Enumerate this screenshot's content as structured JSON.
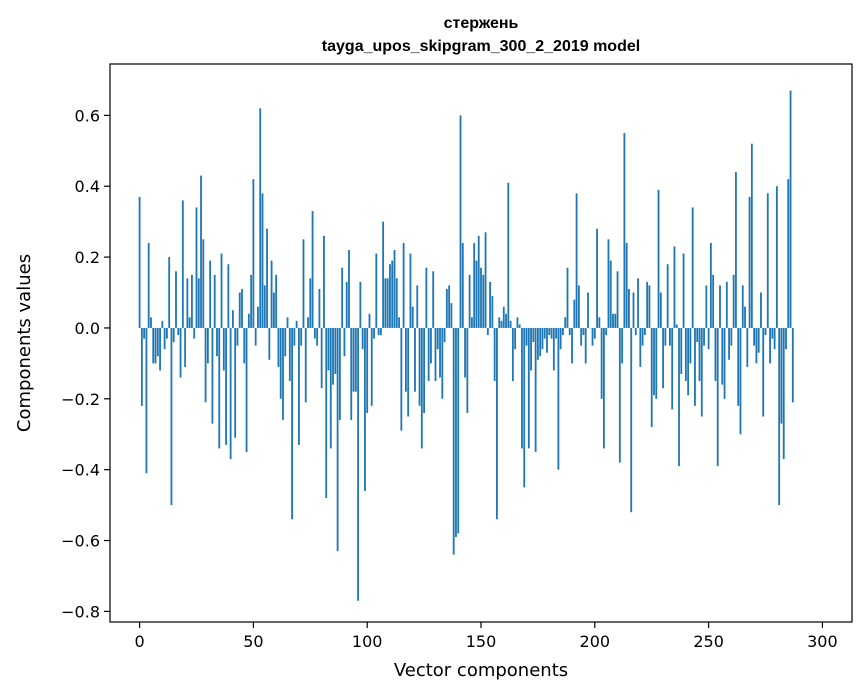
{
  "chart_data": {
    "type": "bar",
    "title_lines": [
      "стержень",
      "tayga_upos_skipgram_300_2_2019 model"
    ],
    "xlabel": "Vector components",
    "ylabel": "Components values",
    "xlim": [
      -13,
      313
    ],
    "ylim": [
      -0.83,
      0.745
    ],
    "xticks": [
      {
        "value": 0,
        "label": "0"
      },
      {
        "value": 50,
        "label": "50"
      },
      {
        "value": 100,
        "label": "100"
      },
      {
        "value": 150,
        "label": "150"
      },
      {
        "value": 200,
        "label": "200"
      },
      {
        "value": 250,
        "label": "250"
      },
      {
        "value": 300,
        "label": "300"
      }
    ],
    "yticks": [
      {
        "value": -0.8,
        "label": "−0.8"
      },
      {
        "value": -0.6,
        "label": "−0.6"
      },
      {
        "value": -0.4,
        "label": "−0.4"
      },
      {
        "value": -0.2,
        "label": "−0.2"
      },
      {
        "value": 0.0,
        "label": "0.0"
      },
      {
        "value": 0.2,
        "label": "0.2"
      },
      {
        "value": 0.4,
        "label": "0.4"
      },
      {
        "value": 0.6,
        "label": "0.6"
      }
    ],
    "grid": false,
    "legend": "none",
    "bar_color": "#1f77b4",
    "values": [
      0.37,
      -0.22,
      -0.03,
      -0.41,
      0.24,
      0.03,
      -0.1,
      -0.1,
      -0.08,
      -0.12,
      0.02,
      -0.06,
      -0.03,
      0.2,
      -0.5,
      -0.04,
      0.16,
      -0.02,
      -0.14,
      0.36,
      -0.11,
      0.14,
      0.03,
      0.15,
      -0.03,
      0.34,
      0.14,
      0.43,
      0.25,
      -0.21,
      -0.1,
      0.19,
      -0.27,
      0.15,
      -0.08,
      -0.34,
      0.21,
      -0.12,
      -0.33,
      0.18,
      -0.37,
      0.05,
      -0.31,
      -0.05,
      0.1,
      0.11,
      -0.1,
      -0.35,
      0.04,
      0.15,
      0.42,
      -0.05,
      0.06,
      0.62,
      0.38,
      0.12,
      0.28,
      -0.09,
      0.19,
      0.1,
      0.15,
      -0.11,
      -0.2,
      -0.26,
      -0.08,
      0.03,
      -0.15,
      -0.54,
      -0.05,
      0.02,
      -0.33,
      -0.05,
      0.25,
      -0.21,
      0.03,
      0.14,
      0.33,
      -0.03,
      -0.05,
      0.11,
      -0.17,
      0.26,
      -0.48,
      -0.12,
      -0.34,
      -0.16,
      -0.13,
      -0.63,
      -0.26,
      0.17,
      -0.08,
      0.13,
      0.22,
      -0.26,
      -0.18,
      -0.18,
      -0.77,
      0.13,
      -0.06,
      -0.46,
      -0.24,
      0.04,
      -0.22,
      -0.03,
      0.21,
      -0.02,
      -0.02,
      0.3,
      0.14,
      0.14,
      0.18,
      0.19,
      0.22,
      0.14,
      0.03,
      -0.29,
      0.24,
      -0.18,
      -0.25,
      0.21,
      0.06,
      -0.18,
      0.12,
      -0.22,
      -0.34,
      -0.24,
      0.17,
      -0.15,
      -0.1,
      0.16,
      -0.15,
      -0.06,
      -0.14,
      -0.2,
      -0.04,
      0.11,
      0.12,
      0.07,
      -0.64,
      -0.59,
      -0.58,
      0.6,
      0.24,
      -0.14,
      -0.24,
      0.15,
      0.03,
      0.24,
      0.19,
      0.26,
      0.17,
      0.15,
      0.27,
      -0.02,
      0.13,
      0.09,
      -0.15,
      -0.54,
      0.03,
      0.02,
      0.06,
      0.04,
      0.41,
      0.02,
      -0.15,
      -0.06,
      0.03,
      0.01,
      -0.34,
      -0.45,
      -0.05,
      -0.34,
      -0.12,
      -0.04,
      -0.35,
      -0.09,
      -0.08,
      -0.06,
      -0.03,
      -0.07,
      -0.02,
      -0.03,
      -0.12,
      -0.03,
      -0.4,
      -0.06,
      -0.02,
      0.03,
      0.17,
      -0.02,
      -0.1,
      0.08,
      0.38,
      0.12,
      -0.05,
      -0.02,
      -0.1,
      0.1,
      0.0,
      -0.05,
      -0.03,
      0.28,
      0.03,
      -0.2,
      -0.34,
      -0.02,
      0.25,
      0.19,
      0.04,
      0.04,
      0.16,
      -0.38,
      -0.1,
      0.55,
      0.24,
      0.11,
      -0.52,
      0.1,
      -0.02,
      0.14,
      -0.11,
      -0.05,
      -0.02,
      0.13,
      0.12,
      -0.28,
      -0.19,
      -0.2,
      0.39,
      0.1,
      -0.17,
      -0.05,
      0.18,
      -0.05,
      -0.23,
      0.23,
      0.01,
      -0.39,
      -0.13,
      0.21,
      -0.15,
      -0.19,
      -0.1,
      0.34,
      -0.22,
      -0.04,
      -0.15,
      -0.25,
      -0.05,
      0.12,
      -0.06,
      0.24,
      0.15,
      -0.15,
      -0.39,
      0.12,
      -0.16,
      -0.2,
      0.13,
      -0.09,
      -0.05,
      0.15,
      0.44,
      -0.22,
      -0.3,
      0.12,
      0.06,
      -0.11,
      0.37,
      0.52,
      -0.05,
      -0.1,
      -0.07,
      0.1,
      -0.25,
      -0.02,
      0.38,
      -0.1,
      -0.03,
      -0.06,
      0.4,
      -0.5,
      -0.27,
      -0.37,
      -0.06,
      0.42,
      0.67,
      -0.21
    ]
  }
}
